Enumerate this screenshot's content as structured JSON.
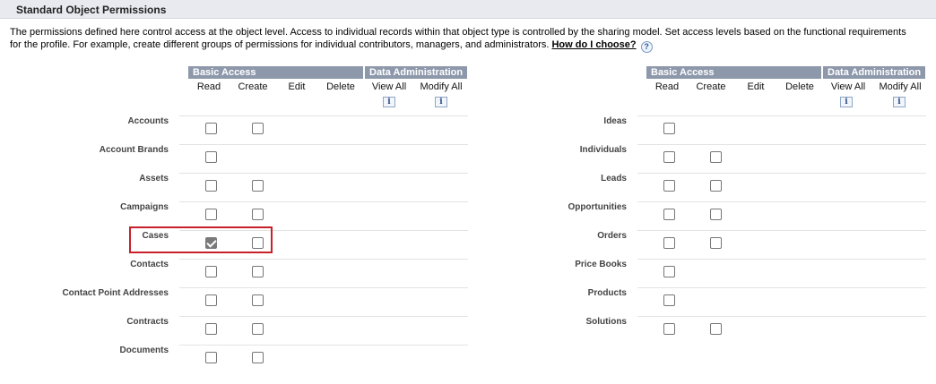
{
  "section": {
    "title": "Standard Object Permissions"
  },
  "description": {
    "text": "The permissions defined here control access at the object level. Access to individual records within that object type is controlled by the sharing model. Set access levels based on the functional requirements for the profile. For example, create different groups of permissions for individual contributors, managers, and administrators.",
    "help_link": "How do I choose?",
    "help_icon": "?"
  },
  "headers": {
    "basic_access": "Basic Access",
    "data_administration": "Data Administration",
    "columns": [
      "Read",
      "Create",
      "Edit",
      "Delete",
      "View All",
      "Modify All"
    ],
    "info_icon": "i"
  },
  "left_objects": [
    {
      "label": "Accounts",
      "read": false,
      "create": false
    },
    {
      "label": "Account Brands",
      "read": false
    },
    {
      "label": "Assets",
      "read": false,
      "create": false
    },
    {
      "label": "Campaigns",
      "read": false,
      "create": false
    },
    {
      "label": "Cases",
      "read": true,
      "create": false
    },
    {
      "label": "Contacts",
      "read": false,
      "create": false
    },
    {
      "label": "Contact Point Addresses",
      "read": false,
      "create": false
    },
    {
      "label": "Contracts",
      "read": false,
      "create": false
    },
    {
      "label": "Documents",
      "read": false,
      "create": false
    }
  ],
  "right_objects": [
    {
      "label": "Ideas",
      "read": false
    },
    {
      "label": "Individuals",
      "read": false,
      "create": false
    },
    {
      "label": "Leads",
      "read": false,
      "create": false
    },
    {
      "label": "Opportunities",
      "read": false,
      "create": false
    },
    {
      "label": "Orders",
      "read": false,
      "create": false
    },
    {
      "label": "Price Books",
      "read": false
    },
    {
      "label": "Products",
      "read": false
    },
    {
      "label": "Solutions",
      "read": false,
      "create": false
    }
  ],
  "colors": {
    "header_bg": "#8d98ab",
    "highlight": "#c8202a"
  }
}
